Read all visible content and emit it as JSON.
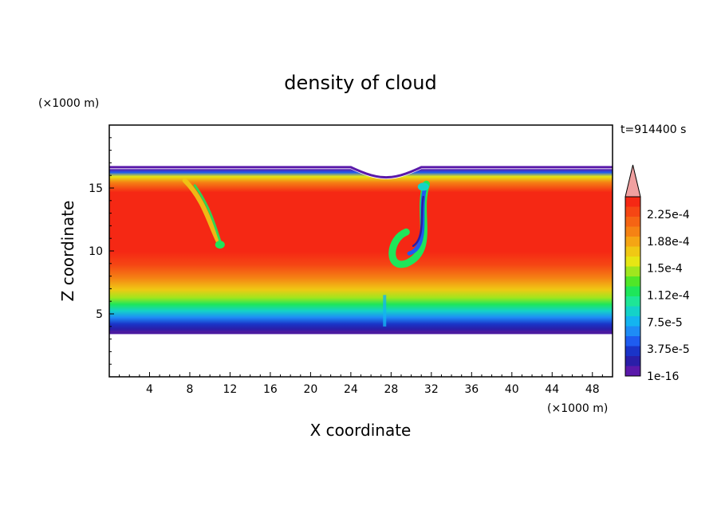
{
  "chart_data": {
    "type": "heatmap",
    "title": "density of cloud",
    "xlabel": "X coordinate",
    "ylabel": "Z coordinate",
    "x_unit": "(×1000 m)",
    "y_unit": "(×1000 m)",
    "time_label": "t=914400 s",
    "xlim": [
      0,
      50
    ],
    "ylim": [
      0,
      20
    ],
    "x_ticks": [
      4,
      8,
      12,
      16,
      20,
      24,
      28,
      32,
      36,
      40,
      44,
      48
    ],
    "y_ticks": [
      5,
      10,
      15
    ],
    "colorbar": {
      "labels": [
        "2.25e-4",
        "1.88e-4",
        "1.5e-4",
        "1.12e-4",
        "7.5e-5",
        "3.75e-5",
        "1e-16"
      ],
      "level_colors": [
        "#5a19aa",
        "#2a1ea8",
        "#1a34c8",
        "#1e5cf0",
        "#1e8cf6",
        "#14b4f0",
        "#14d2c8",
        "#1ee696",
        "#1ee65a",
        "#50e628",
        "#a0e61e",
        "#e6e614",
        "#f0c814",
        "#f5a514",
        "#f58214",
        "#f56414",
        "#f54614",
        "#f52814",
        "#f0a0a0"
      ],
      "extend": "max"
    },
    "cloud": {
      "base_z": 3.4,
      "top_z": 16.5,
      "top_dip_x": [
        24,
        31
      ],
      "top_dip_z": 15.7
    }
  }
}
